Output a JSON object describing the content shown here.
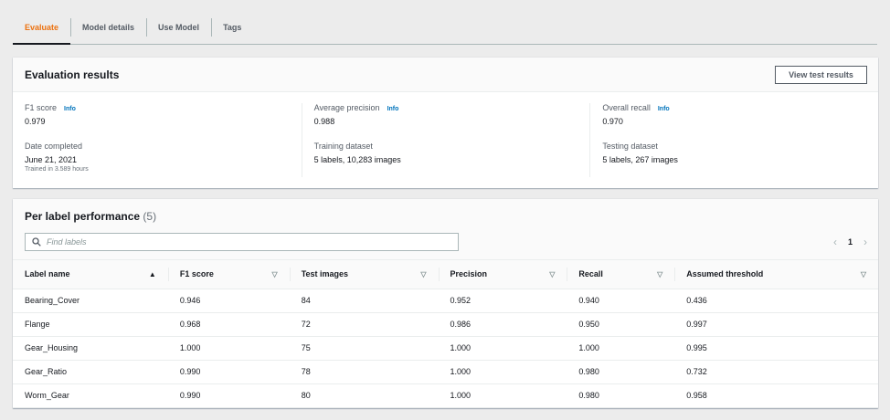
{
  "tabs": [
    {
      "label": "Evaluate",
      "active": true
    },
    {
      "label": "Model details"
    },
    {
      "label": "Use Model"
    },
    {
      "label": "Tags"
    }
  ],
  "evaluation": {
    "title": "Evaluation results",
    "button": "View test results",
    "info_label": "Info",
    "f1": {
      "label": "F1 score",
      "value": "0.979"
    },
    "date": {
      "label": "Date completed",
      "value": "June 21, 2021",
      "note": "Trained in 3.589 hours"
    },
    "avg_precision": {
      "label": "Average precision",
      "value": "0.988"
    },
    "training": {
      "label": "Training dataset",
      "value": "5 labels, 10,283 images"
    },
    "recall": {
      "label": "Overall recall",
      "value": "0.970"
    },
    "testing": {
      "label": "Testing dataset",
      "value": "5 labels, 267 images"
    }
  },
  "performance": {
    "title": "Per label performance",
    "count": "(5)",
    "search_placeholder": "Find labels",
    "page": "1",
    "columns": [
      {
        "label": "Label name",
        "sort": "ascending"
      },
      {
        "label": "F1 score",
        "sort": "none"
      },
      {
        "label": "Test images",
        "sort": "none"
      },
      {
        "label": "Precision",
        "sort": "none"
      },
      {
        "label": "Recall",
        "sort": "none"
      },
      {
        "label": "Assumed threshold",
        "sort": "none"
      }
    ],
    "rows": [
      [
        "Bearing_Cover",
        "0.946",
        "84",
        "0.952",
        "0.940",
        "0.436"
      ],
      [
        "Flange",
        "0.968",
        "72",
        "0.986",
        "0.950",
        "0.997"
      ],
      [
        "Gear_Housing",
        "1.000",
        "75",
        "1.000",
        "1.000",
        "0.995"
      ],
      [
        "Gear_Ratio",
        "0.990",
        "78",
        "1.000",
        "0.980",
        "0.732"
      ],
      [
        "Worm_Gear",
        "0.990",
        "80",
        "1.000",
        "0.980",
        "0.958"
      ]
    ]
  },
  "colors": {
    "accent": "#ec7211",
    "link": "#0073bb"
  }
}
